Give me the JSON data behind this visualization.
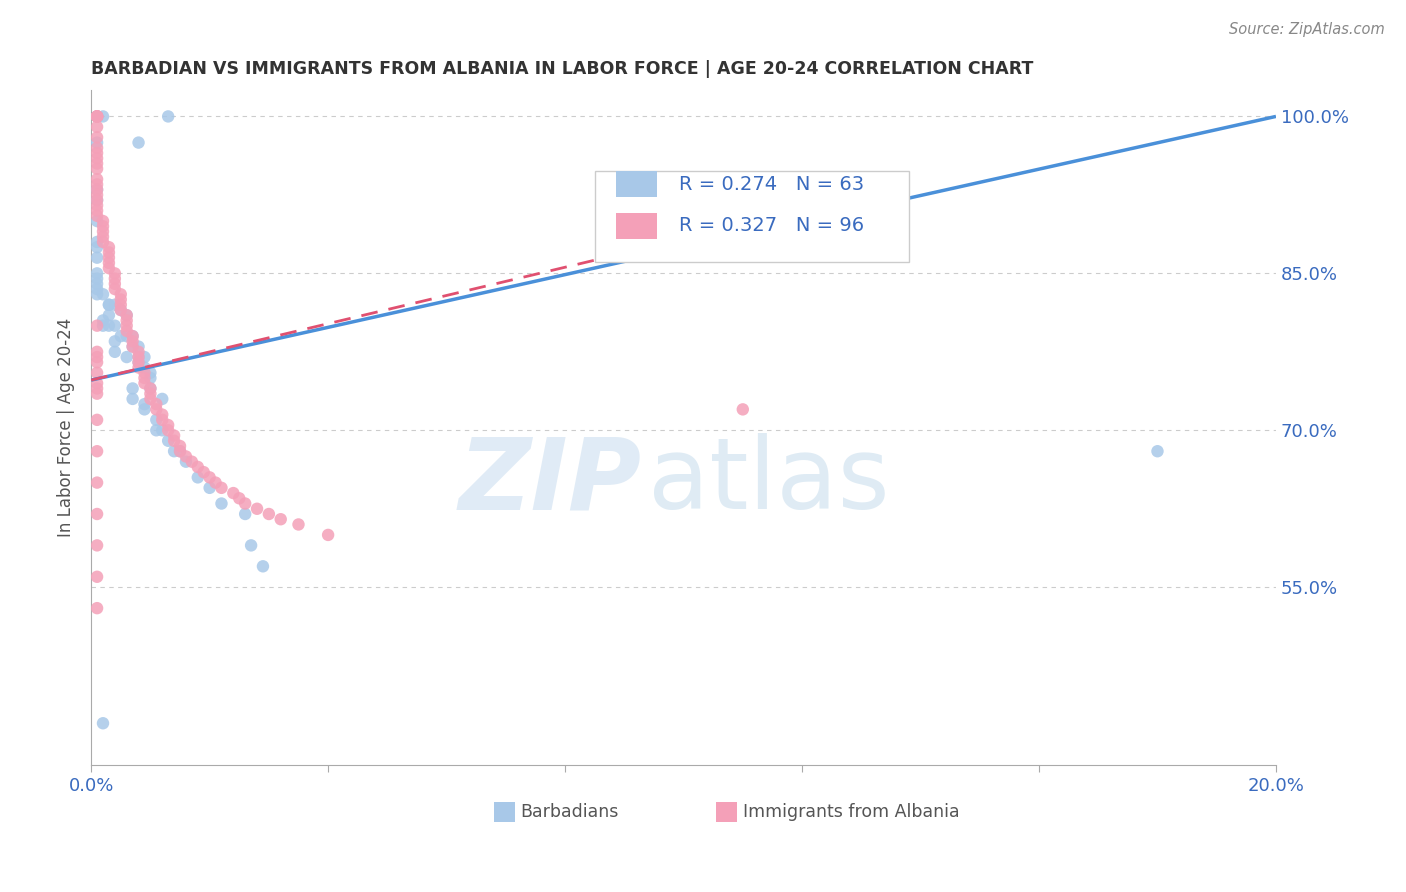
{
  "title": "BARBADIAN VS IMMIGRANTS FROM ALBANIA IN LABOR FORCE | AGE 20-24 CORRELATION CHART",
  "source": "Source: ZipAtlas.com",
  "ylabel": "In Labor Force | Age 20-24",
  "xlim": [
    0.0,
    0.2
  ],
  "ylim": [
    0.38,
    1.025
  ],
  "yticks": [
    0.55,
    0.7,
    0.85,
    1.0
  ],
  "ytick_labels": [
    "55.0%",
    "70.0%",
    "85.0%",
    "100.0%"
  ],
  "xticks": [
    0.0,
    0.04,
    0.08,
    0.12,
    0.16,
    0.2
  ],
  "xtick_labels": [
    "0.0%",
    "",
    "",
    "",
    "",
    "20.0%"
  ],
  "r_barbadian": 0.274,
  "n_barbadian": 63,
  "r_albania": 0.327,
  "n_albania": 96,
  "color_barbadian": "#a8c8e8",
  "color_albania": "#f4a0b8",
  "color_trendline_barbadian": "#4a90d9",
  "color_trendline_albania": "#e05070",
  "legend_r_color": "#3a6bbf",
  "watermark_zip": "ZIP",
  "watermark_atlas": "atlas",
  "trendline_b_x0": 0.0,
  "trendline_b_y0": 0.748,
  "trendline_b_x1": 0.2,
  "trendline_b_y1": 1.0,
  "trendline_a_x0": 0.0,
  "trendline_a_y0": 0.748,
  "trendline_a_x1": 0.135,
  "trendline_a_y1": 0.93,
  "barbadian_x": [
    0.002,
    0.013,
    0.001,
    0.001,
    0.008,
    0.001,
    0.001,
    0.001,
    0.001,
    0.001,
    0.001,
    0.001,
    0.001,
    0.001,
    0.001,
    0.001,
    0.001,
    0.002,
    0.003,
    0.004,
    0.003,
    0.005,
    0.003,
    0.006,
    0.002,
    0.004,
    0.003,
    0.002,
    0.006,
    0.007,
    0.005,
    0.004,
    0.007,
    0.008,
    0.004,
    0.006,
    0.008,
    0.009,
    0.008,
    0.009,
    0.01,
    0.01,
    0.01,
    0.007,
    0.012,
    0.007,
    0.009,
    0.009,
    0.011,
    0.011,
    0.012,
    0.013,
    0.014,
    0.015,
    0.016,
    0.018,
    0.02,
    0.022,
    0.026,
    0.027,
    0.029,
    0.18,
    0.002
  ],
  "barbadian_y": [
    1.0,
    1.0,
    1.0,
    1.0,
    0.975,
    0.975,
    0.93,
    0.92,
    0.9,
    0.88,
    0.875,
    0.865,
    0.85,
    0.845,
    0.84,
    0.835,
    0.83,
    0.83,
    0.82,
    0.82,
    0.82,
    0.815,
    0.81,
    0.81,
    0.805,
    0.8,
    0.8,
    0.8,
    0.79,
    0.79,
    0.79,
    0.785,
    0.78,
    0.78,
    0.775,
    0.77,
    0.77,
    0.77,
    0.765,
    0.76,
    0.755,
    0.75,
    0.74,
    0.74,
    0.73,
    0.73,
    0.725,
    0.72,
    0.71,
    0.7,
    0.7,
    0.69,
    0.68,
    0.68,
    0.67,
    0.655,
    0.645,
    0.63,
    0.62,
    0.59,
    0.57,
    0.68,
    0.42
  ],
  "albania_x": [
    0.001,
    0.001,
    0.001,
    0.001,
    0.001,
    0.001,
    0.001,
    0.001,
    0.001,
    0.001,
    0.001,
    0.001,
    0.001,
    0.001,
    0.001,
    0.001,
    0.001,
    0.001,
    0.001,
    0.001,
    0.002,
    0.002,
    0.002,
    0.002,
    0.002,
    0.003,
    0.003,
    0.003,
    0.003,
    0.003,
    0.004,
    0.004,
    0.004,
    0.004,
    0.005,
    0.005,
    0.005,
    0.005,
    0.006,
    0.006,
    0.006,
    0.006,
    0.007,
    0.007,
    0.007,
    0.008,
    0.008,
    0.008,
    0.008,
    0.009,
    0.009,
    0.009,
    0.01,
    0.01,
    0.01,
    0.011,
    0.011,
    0.012,
    0.012,
    0.013,
    0.013,
    0.014,
    0.014,
    0.015,
    0.015,
    0.016,
    0.017,
    0.018,
    0.019,
    0.02,
    0.021,
    0.022,
    0.024,
    0.025,
    0.026,
    0.028,
    0.03,
    0.032,
    0.035,
    0.04,
    0.001,
    0.001,
    0.001,
    0.001,
    0.001,
    0.001,
    0.001,
    0.001,
    0.001,
    0.001,
    0.11,
    0.001,
    0.001,
    0.001,
    0.001,
    0.001
  ],
  "albania_y": [
    1.0,
    1.0,
    1.0,
    1.0,
    1.0,
    0.99,
    0.98,
    0.97,
    0.965,
    0.96,
    0.955,
    0.95,
    0.94,
    0.935,
    0.93,
    0.925,
    0.92,
    0.915,
    0.91,
    0.905,
    0.9,
    0.895,
    0.89,
    0.885,
    0.88,
    0.875,
    0.87,
    0.865,
    0.86,
    0.855,
    0.85,
    0.845,
    0.84,
    0.835,
    0.83,
    0.825,
    0.82,
    0.815,
    0.81,
    0.805,
    0.8,
    0.795,
    0.79,
    0.785,
    0.78,
    0.775,
    0.77,
    0.765,
    0.76,
    0.755,
    0.75,
    0.745,
    0.74,
    0.735,
    0.73,
    0.725,
    0.72,
    0.715,
    0.71,
    0.705,
    0.7,
    0.695,
    0.69,
    0.685,
    0.68,
    0.675,
    0.67,
    0.665,
    0.66,
    0.655,
    0.65,
    0.645,
    0.64,
    0.635,
    0.63,
    0.625,
    0.62,
    0.615,
    0.61,
    0.6,
    0.8,
    0.77,
    0.74,
    0.71,
    0.68,
    0.65,
    0.62,
    0.59,
    0.56,
    0.53,
    0.72,
    0.735,
    0.745,
    0.755,
    0.765,
    0.775
  ]
}
